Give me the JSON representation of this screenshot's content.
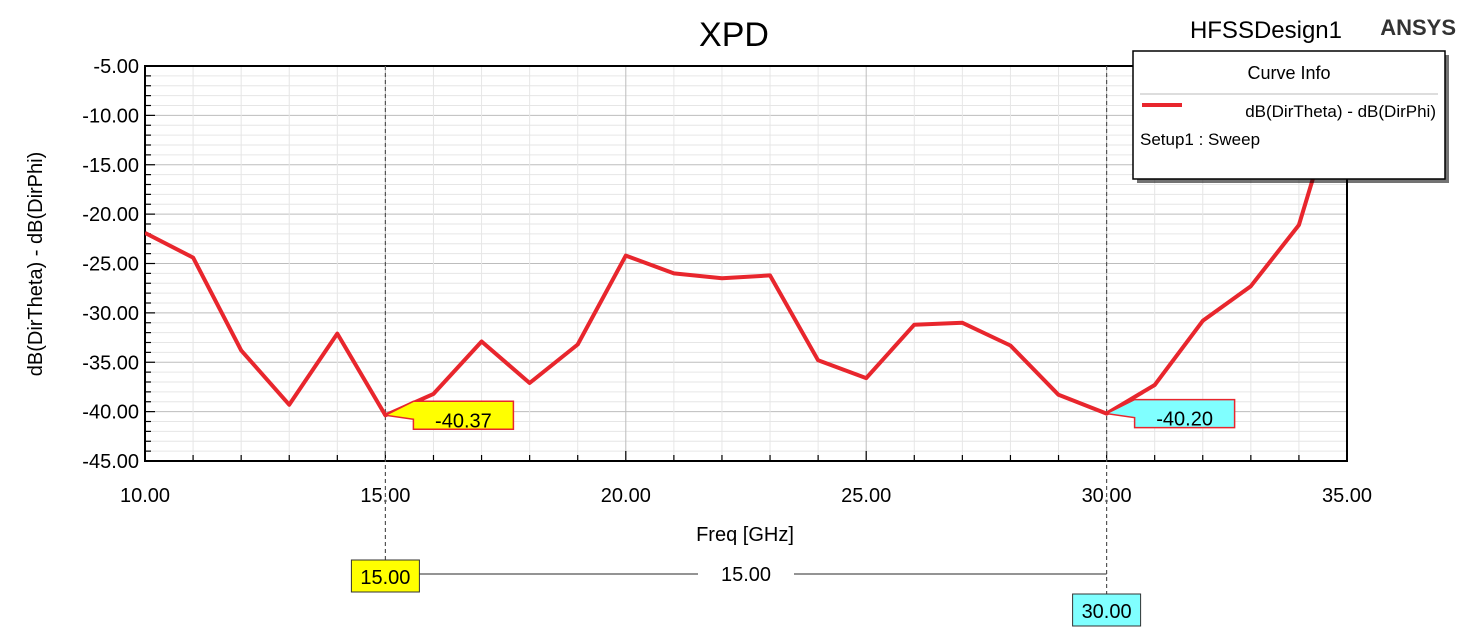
{
  "header": {
    "title": "XPD",
    "design_name": "HFSSDesign1",
    "brand": "ANSYS"
  },
  "legend": {
    "title": "Curve Info",
    "series_label": "dB(DirTheta) - dB(DirPhi)",
    "setup_label": "Setup1 : Sweep"
  },
  "colors": {
    "curve": "#e8262d",
    "marker1": "#ffff00",
    "marker2": "#80ffff",
    "marker_border": "#e8262d"
  },
  "markers": {
    "m1": {
      "x": 15,
      "y": -40.37,
      "value_label": "-40.37",
      "x_label": "15.00"
    },
    "m2": {
      "x": 30,
      "y": -40.2,
      "value_label": "-40.20",
      "x_label": "30.00"
    },
    "delta_label": "15.00"
  },
  "chart_data": {
    "type": "line",
    "title": "XPD",
    "xlabel": "Freq [GHz]",
    "ylabel": "dB(DirTheta) - dB(DirPhi)",
    "xlim": [
      10,
      35
    ],
    "ylim": [
      -45,
      -5
    ],
    "x_ticks": [
      "10.00",
      "15.00",
      "20.00",
      "25.00",
      "30.00",
      "35.00"
    ],
    "y_ticks": [
      "-5.00",
      "-10.00",
      "-15.00",
      "-20.00",
      "-25.00",
      "-30.00",
      "-35.00",
      "-40.00",
      "-45.00"
    ],
    "grid": true,
    "legend_position": "top-right",
    "series": [
      {
        "name": "dB(DirTheta) - dB(DirPhi)",
        "x": [
          10,
          11,
          12,
          13,
          14,
          15,
          16,
          17,
          18,
          19,
          20,
          21,
          22,
          23,
          24,
          25,
          26,
          27,
          28,
          29,
          30,
          31,
          32,
          33,
          34,
          35
        ],
        "y": [
          -21.9,
          -24.4,
          -33.8,
          -39.3,
          -32.1,
          -40.37,
          -38.2,
          -32.9,
          -37.1,
          -33.2,
          -24.2,
          -26.0,
          -26.5,
          -26.2,
          -34.8,
          -36.6,
          -31.2,
          -31.0,
          -33.3,
          -38.3,
          -40.2,
          -37.3,
          -30.8,
          -27.3,
          -21.1,
          -5.0
        ]
      }
    ]
  }
}
